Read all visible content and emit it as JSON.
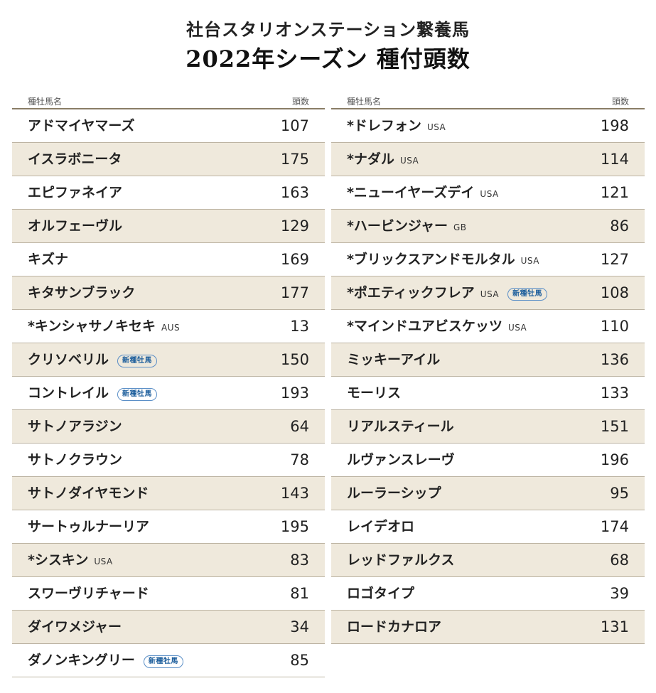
{
  "header": {
    "title": "社台スタリオンステーション繋養馬",
    "subtitle": "2022年シーズン 種付頭数"
  },
  "columns": {
    "name_header": "種牡馬名",
    "count_header": "頭数"
  },
  "left": [
    {
      "name": "アドマイヤマーズ",
      "country": "",
      "badge": "",
      "count": "107"
    },
    {
      "name": "イスラボニータ",
      "country": "",
      "badge": "",
      "count": "175"
    },
    {
      "name": "エピファネイア",
      "country": "",
      "badge": "",
      "count": "163"
    },
    {
      "name": "オルフェーヴル",
      "country": "",
      "badge": "",
      "count": "129"
    },
    {
      "name": "キズナ",
      "country": "",
      "badge": "",
      "count": "169"
    },
    {
      "name": "キタサンブラック",
      "country": "",
      "badge": "",
      "count": "177"
    },
    {
      "name": "*キンシャサノキセキ",
      "country": "AUS",
      "badge": "",
      "count": "13"
    },
    {
      "name": "クリソベリル",
      "country": "",
      "badge": "新種牡馬",
      "count": "150"
    },
    {
      "name": "コントレイル",
      "country": "",
      "badge": "新種牡馬",
      "count": "193"
    },
    {
      "name": "サトノアラジン",
      "country": "",
      "badge": "",
      "count": "64"
    },
    {
      "name": "サトノクラウン",
      "country": "",
      "badge": "",
      "count": "78"
    },
    {
      "name": "サトノダイヤモンド",
      "country": "",
      "badge": "",
      "count": "143"
    },
    {
      "name": "サートゥルナーリア",
      "country": "",
      "badge": "",
      "count": "195"
    },
    {
      "name": "*シスキン",
      "country": "USA",
      "badge": "",
      "count": "83"
    },
    {
      "name": "スワーヴリチャード",
      "country": "",
      "badge": "",
      "count": "81"
    },
    {
      "name": "ダイワメジャー",
      "country": "",
      "badge": "",
      "count": "34"
    },
    {
      "name": "ダノンキングリー",
      "country": "",
      "badge": "新種牡馬",
      "count": "85"
    }
  ],
  "right": [
    {
      "name": "*ドレフォン",
      "country": "USA",
      "badge": "",
      "count": "198"
    },
    {
      "name": "*ナダル",
      "country": "USA",
      "badge": "",
      "count": "114"
    },
    {
      "name": "*ニューイヤーズデイ",
      "country": "USA",
      "badge": "",
      "count": "121"
    },
    {
      "name": "*ハービンジャー",
      "country": "GB",
      "badge": "",
      "count": "86"
    },
    {
      "name": "*ブリックスアンドモルタル",
      "country": "USA",
      "badge": "",
      "count": "127"
    },
    {
      "name": "*ポエティックフレア",
      "country": "USA",
      "badge": "新種牡馬",
      "count": "108"
    },
    {
      "name": "*マインドユアビスケッツ",
      "country": "USA",
      "badge": "",
      "count": "110"
    },
    {
      "name": "ミッキーアイル",
      "country": "",
      "badge": "",
      "count": "136"
    },
    {
      "name": "モーリス",
      "country": "",
      "badge": "",
      "count": "133"
    },
    {
      "name": "リアルスティール",
      "country": "",
      "badge": "",
      "count": "151"
    },
    {
      "name": "ルヴァンスレーヴ",
      "country": "",
      "badge": "",
      "count": "196"
    },
    {
      "name": "ルーラーシップ",
      "country": "",
      "badge": "",
      "count": "95"
    },
    {
      "name": "レイデオロ",
      "country": "",
      "badge": "",
      "count": "174"
    },
    {
      "name": "レッドファルクス",
      "country": "",
      "badge": "",
      "count": "68"
    },
    {
      "name": "ロゴタイプ",
      "country": "",
      "badge": "",
      "count": "39"
    },
    {
      "name": "ロードカナロア",
      "country": "",
      "badge": "",
      "count": "131"
    }
  ]
}
